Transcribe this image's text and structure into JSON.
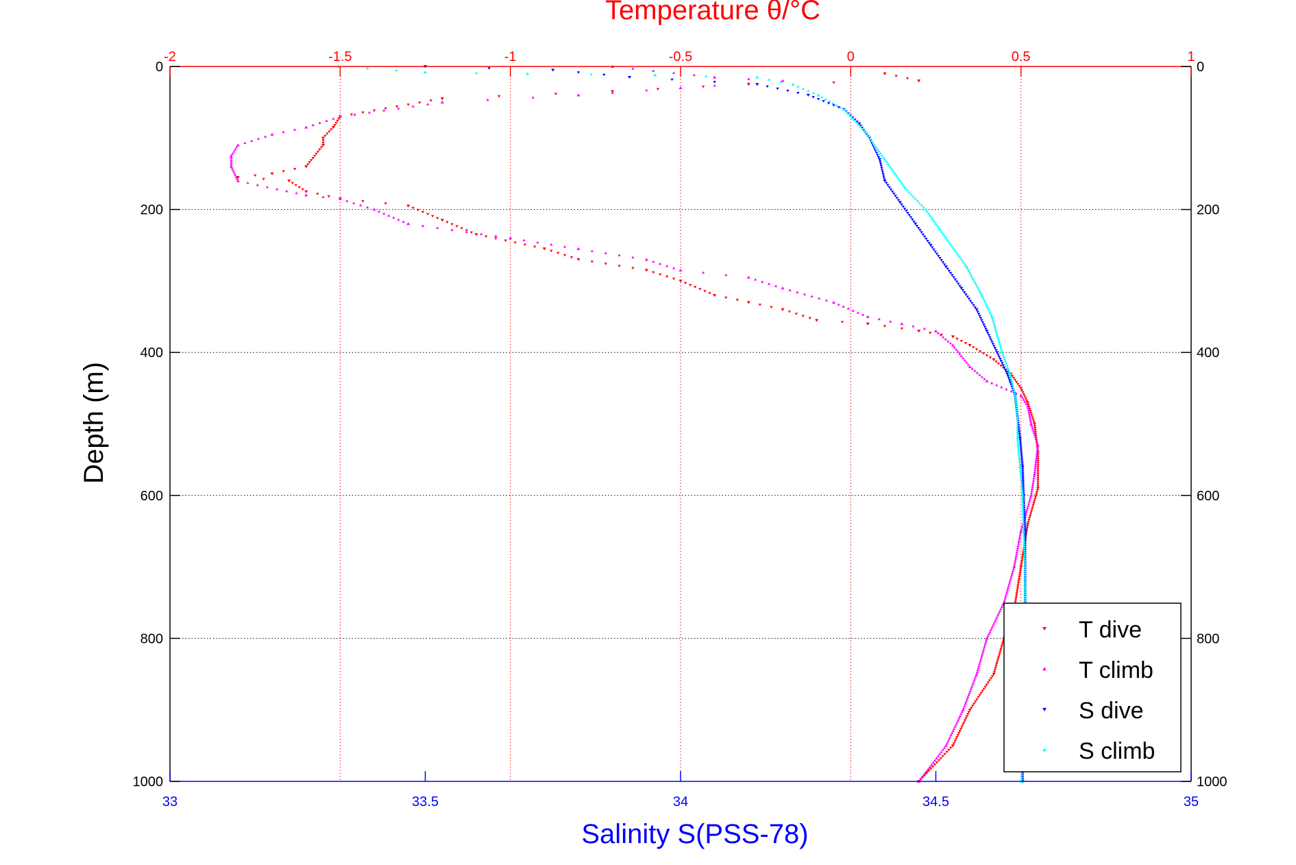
{
  "chart_data": {
    "type": "scatter",
    "title": "Temperature θ/°C",
    "xlabel": "Salinity S(PSS-78)",
    "ylabel": "Depth (m)",
    "xlim_salinity": [
      33,
      35
    ],
    "xlim_temperature": [
      -2,
      1
    ],
    "ylim": [
      0,
      1000
    ],
    "y_reversed": true,
    "salinity_ticks": [
      "33",
      "33.5",
      "34",
      "34.5",
      "35"
    ],
    "temperature_ticks": [
      "-2",
      "-1.5",
      "-1",
      "-0.5",
      "0",
      "0.5",
      "1"
    ],
    "depth_ticks": [
      "0",
      "200",
      "400",
      "600",
      "800",
      "1000"
    ],
    "grid": true,
    "legend_position": "bottom-right",
    "colors": {
      "t_dive": "#ff0000",
      "t_climb": "#ff00ff",
      "s_dive": "#0000ff",
      "s_climb": "#00ffff",
      "temp_axis": "#ff0000",
      "sal_axis": "#0000ff"
    },
    "series": [
      {
        "name": "T dive",
        "axis": "temperature",
        "marker": "triangle-down",
        "points": [
          [
            0.1,
            10
          ],
          [
            0.2,
            20
          ],
          [
            -0.3,
            25
          ],
          [
            -0.7,
            35
          ],
          [
            -1.2,
            45
          ],
          [
            -1.5,
            70
          ],
          [
            -1.52,
            85
          ],
          [
            -1.55,
            100
          ],
          [
            -1.55,
            110
          ],
          [
            -1.6,
            140
          ],
          [
            -1.7,
            150
          ],
          [
            -1.8,
            155
          ],
          [
            -1.65,
            160
          ],
          [
            -1.6,
            175
          ],
          [
            -1.5,
            185
          ],
          [
            -1.3,
            195
          ],
          [
            -1.2,
            215
          ],
          [
            -1.1,
            235
          ],
          [
            -0.9,
            255
          ],
          [
            -0.8,
            270
          ],
          [
            -0.6,
            285
          ],
          [
            -0.5,
            300
          ],
          [
            -0.4,
            320
          ],
          [
            -0.3,
            330
          ],
          [
            -0.2,
            340
          ],
          [
            -0.1,
            355
          ],
          [
            0.05,
            360
          ],
          [
            0.2,
            370
          ],
          [
            0.3,
            378
          ],
          [
            0.35,
            390
          ],
          [
            0.42,
            410
          ],
          [
            0.47,
            430
          ],
          [
            0.5,
            450
          ],
          [
            0.52,
            470
          ],
          [
            0.54,
            500
          ],
          [
            0.55,
            540
          ],
          [
            0.55,
            590
          ],
          [
            0.52,
            640
          ],
          [
            0.5,
            700
          ],
          [
            0.48,
            760
          ],
          [
            0.45,
            800
          ],
          [
            0.42,
            850
          ],
          [
            0.35,
            900
          ],
          [
            0.3,
            950
          ],
          [
            0.2,
            1000
          ]
        ]
      },
      {
        "name": "T climb",
        "axis": "temperature",
        "marker": "triangle-up",
        "points": [
          [
            -0.7,
            0
          ],
          [
            -0.4,
            15
          ],
          [
            -0.2,
            20
          ],
          [
            -0.5,
            30
          ],
          [
            -0.8,
            40
          ],
          [
            -1.2,
            50
          ],
          [
            -1.5,
            70
          ],
          [
            -1.6,
            85
          ],
          [
            -1.7,
            95
          ],
          [
            -1.8,
            110
          ],
          [
            -1.82,
            125
          ],
          [
            -1.82,
            140
          ],
          [
            -1.8,
            160
          ],
          [
            -1.6,
            180
          ],
          [
            -1.5,
            185
          ],
          [
            -1.4,
            200
          ],
          [
            -1.3,
            220
          ],
          [
            -1.0,
            240
          ],
          [
            -0.8,
            255
          ],
          [
            -0.6,
            270
          ],
          [
            -0.5,
            285
          ],
          [
            -0.3,
            295
          ],
          [
            -0.2,
            310
          ],
          [
            -0.05,
            330
          ],
          [
            0.05,
            350
          ],
          [
            0.15,
            360
          ],
          [
            0.25,
            370
          ],
          [
            0.3,
            390
          ],
          [
            0.35,
            420
          ],
          [
            0.4,
            440
          ],
          [
            0.5,
            460
          ],
          [
            0.52,
            475
          ],
          [
            0.53,
            500
          ],
          [
            0.55,
            530
          ],
          [
            0.54,
            570
          ],
          [
            0.53,
            600
          ],
          [
            0.5,
            650
          ],
          [
            0.48,
            700
          ],
          [
            0.45,
            750
          ],
          [
            0.4,
            800
          ],
          [
            0.37,
            850
          ],
          [
            0.33,
            900
          ],
          [
            0.28,
            950
          ],
          [
            0.2,
            1000
          ]
        ]
      },
      {
        "name": "S dive",
        "axis": "salinity",
        "marker": "triangle-down",
        "points": [
          [
            33.5,
            0
          ],
          [
            33.75,
            5
          ],
          [
            33.9,
            15
          ],
          [
            34.15,
            25
          ],
          [
            34.25,
            40
          ],
          [
            34.32,
            60
          ],
          [
            34.35,
            80
          ],
          [
            34.37,
            100
          ],
          [
            34.39,
            130
          ],
          [
            34.4,
            160
          ],
          [
            34.43,
            190
          ],
          [
            34.46,
            220
          ],
          [
            34.49,
            250
          ],
          [
            34.52,
            280
          ],
          [
            34.55,
            310
          ],
          [
            34.58,
            340
          ],
          [
            34.6,
            370
          ],
          [
            34.62,
            400
          ],
          [
            34.64,
            430
          ],
          [
            34.655,
            460
          ],
          [
            34.66,
            490
          ],
          [
            34.665,
            520
          ],
          [
            34.67,
            560
          ],
          [
            34.672,
            600
          ],
          [
            34.675,
            650
          ],
          [
            34.675,
            700
          ],
          [
            34.675,
            750
          ],
          [
            34.672,
            800
          ],
          [
            34.67,
            850
          ],
          [
            34.67,
            900
          ],
          [
            34.67,
            950
          ],
          [
            34.67,
            1000
          ]
        ]
      },
      {
        "name": "S climb",
        "axis": "salinity",
        "marker": "triangle-up",
        "points": [
          [
            33.33,
            0
          ],
          [
            33.5,
            8
          ],
          [
            33.7,
            10
          ],
          [
            33.95,
            12
          ],
          [
            34.15,
            15
          ],
          [
            34.22,
            25
          ],
          [
            34.27,
            40
          ],
          [
            34.32,
            60
          ],
          [
            34.36,
            90
          ],
          [
            34.4,
            130
          ],
          [
            34.44,
            170
          ],
          [
            34.48,
            200
          ],
          [
            34.52,
            240
          ],
          [
            34.56,
            280
          ],
          [
            34.59,
            320
          ],
          [
            34.61,
            350
          ],
          [
            34.63,
            400
          ],
          [
            34.645,
            430
          ],
          [
            34.655,
            460
          ],
          [
            34.66,
            490
          ],
          [
            34.66,
            520
          ],
          [
            34.665,
            560
          ],
          [
            34.67,
            600
          ],
          [
            34.672,
            650
          ],
          [
            34.675,
            700
          ],
          [
            34.675,
            750
          ],
          [
            34.673,
            800
          ],
          [
            34.67,
            850
          ],
          [
            34.668,
            900
          ],
          [
            34.668,
            950
          ],
          [
            34.668,
            1000
          ]
        ]
      }
    ]
  }
}
